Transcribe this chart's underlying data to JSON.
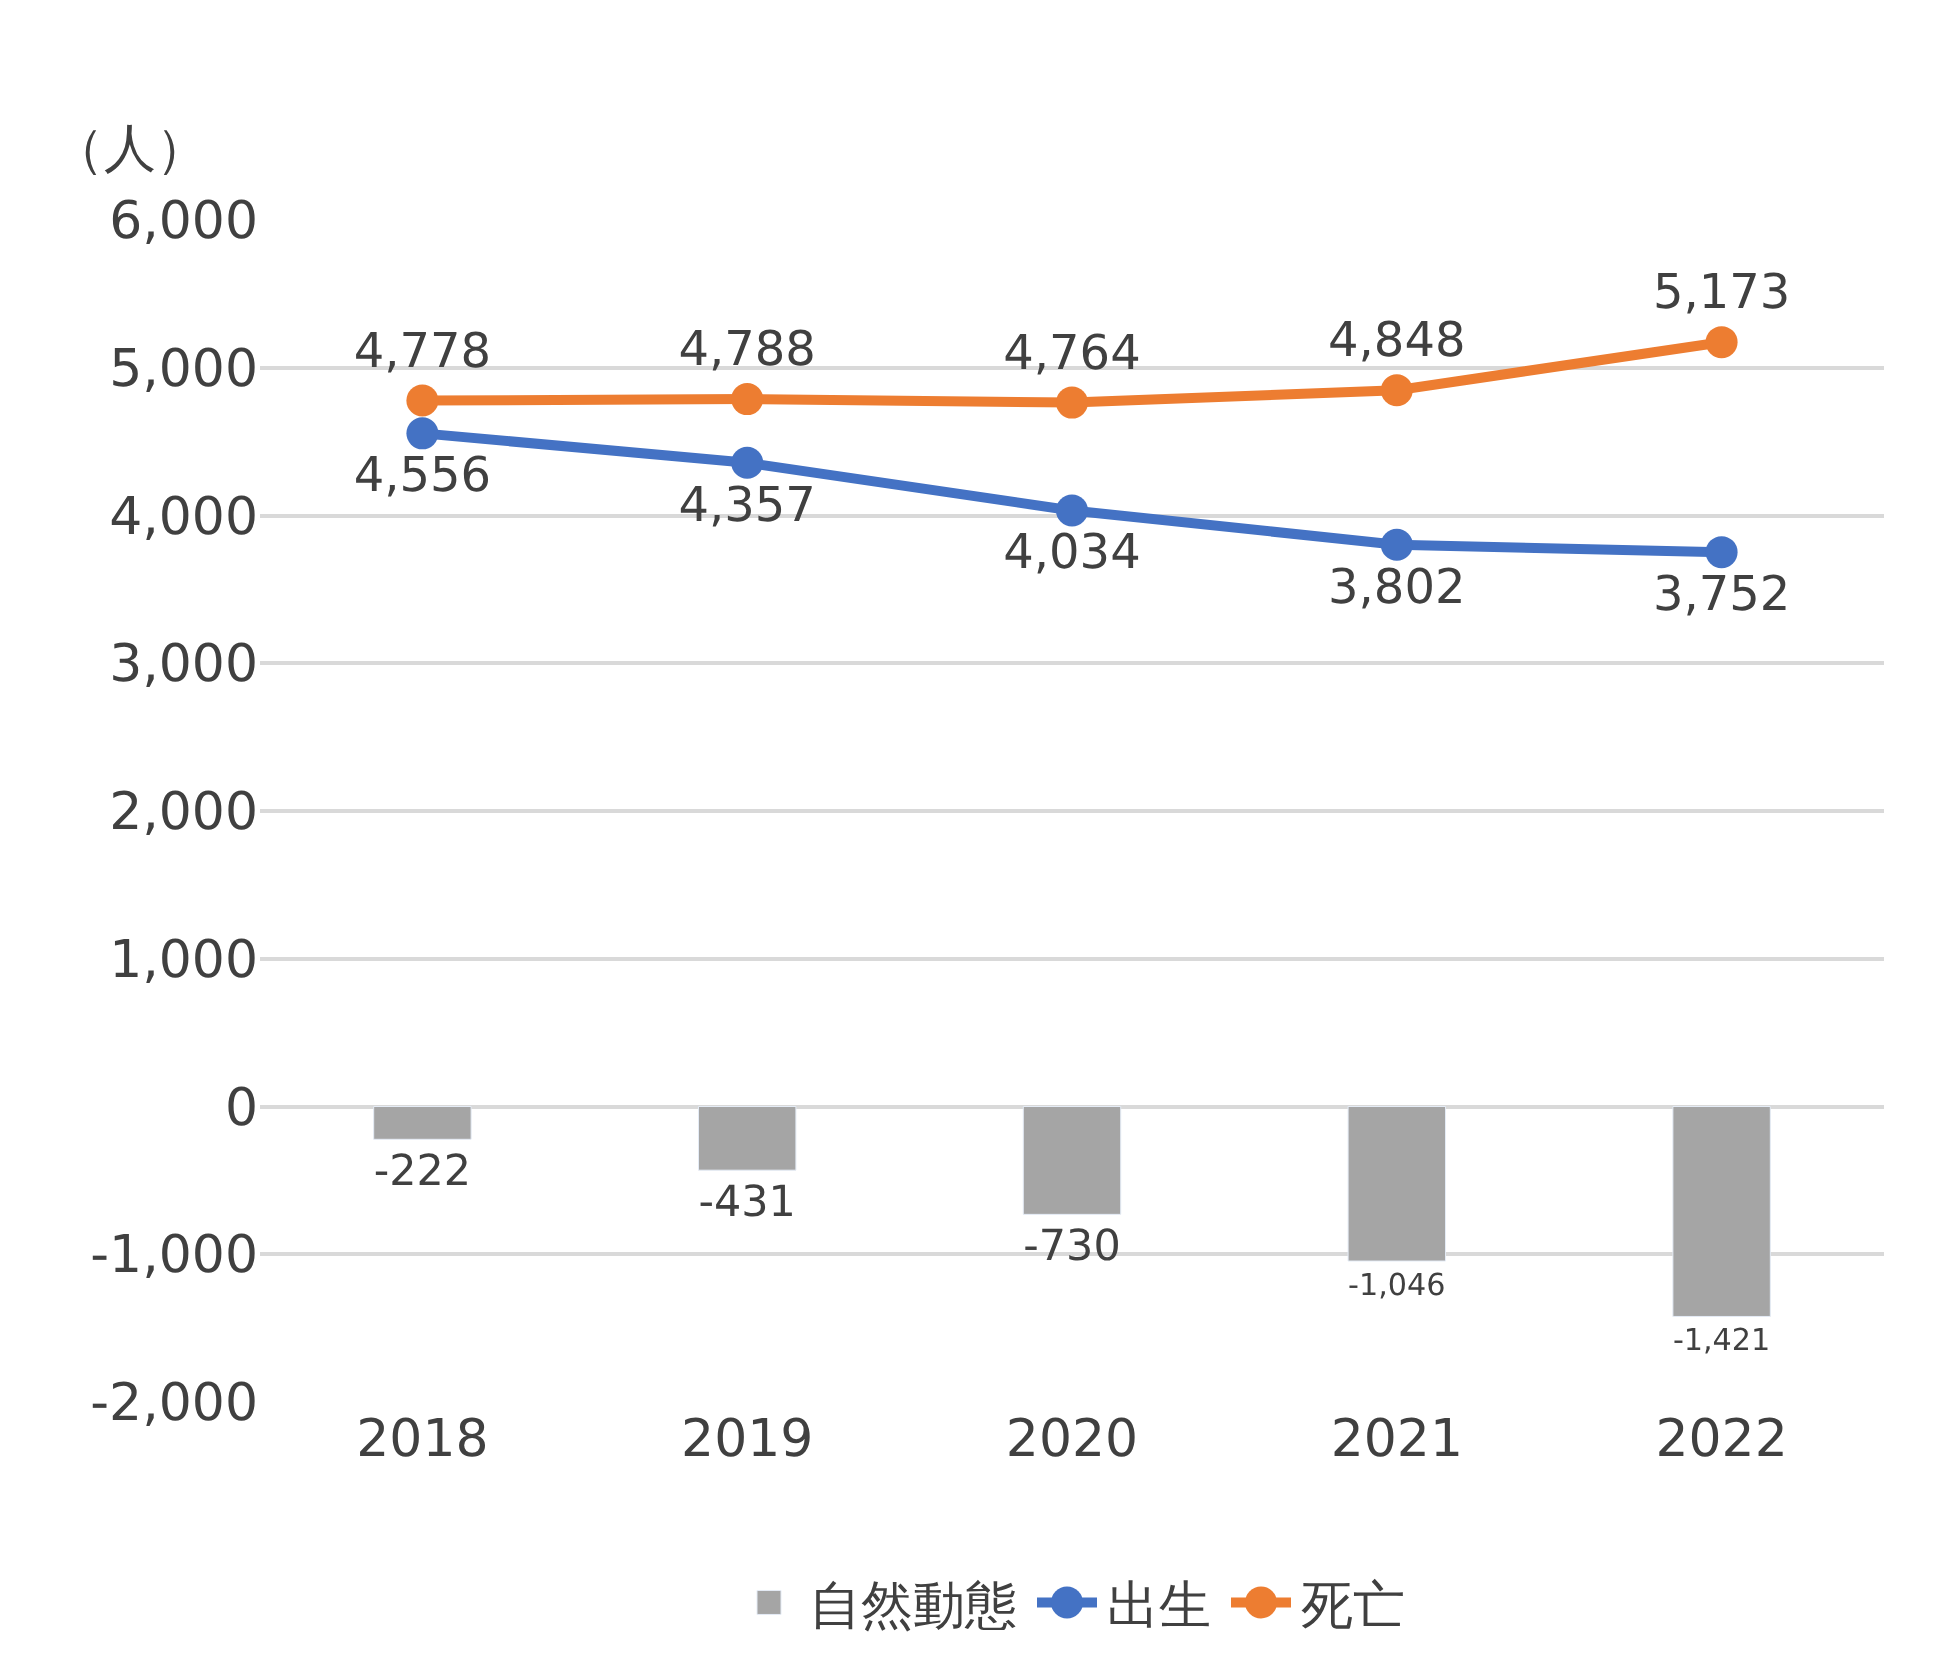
{
  "chart_data": {
    "type": "bar",
    "ylabel": "（人）",
    "categories": [
      "2018",
      "2019",
      "2020",
      "2021",
      "2022"
    ],
    "series": [
      {
        "name": "自然動態",
        "color": "#a5a5a5",
        "values": [
          -222,
          -431,
          -730,
          -1046,
          -1421
        ],
        "value_labels": [
          "-222",
          "-431",
          "-730",
          "-1,046",
          "-1,421"
        ]
      },
      {
        "name": "出生",
        "type": "line",
        "color": "#4472c4",
        "values": [
          4556,
          4357,
          4034,
          3802,
          3752
        ],
        "value_labels": [
          "4,556",
          "4,357",
          "4,034",
          "3,802",
          "3,752"
        ]
      },
      {
        "name": "死亡",
        "type": "line",
        "color": "#ed7d31",
        "values": [
          4778,
          4788,
          4764,
          4848,
          5173
        ],
        "value_labels": [
          "4,778",
          "4,788",
          "4,764",
          "4,848",
          "5,173"
        ]
      }
    ],
    "ylim": [
      -2000,
      6000
    ],
    "yticks": [
      {
        "value": -2000,
        "label": "-2,000"
      },
      {
        "value": -1000,
        "label": "-1,000"
      },
      0,
      {
        "value": 1000,
        "label": "1,000"
      },
      {
        "value": 2000,
        "label": "2,000"
      },
      {
        "value": 3000,
        "label": "3,000"
      },
      {
        "value": 4000,
        "label": "4,000"
      },
      {
        "value": 5000,
        "label": "5,000"
      },
      {
        "value": 6000,
        "label": "6,000"
      }
    ],
    "grid": "y",
    "legend": "bottom",
    "marker": "circle",
    "line_style": "solid"
  }
}
